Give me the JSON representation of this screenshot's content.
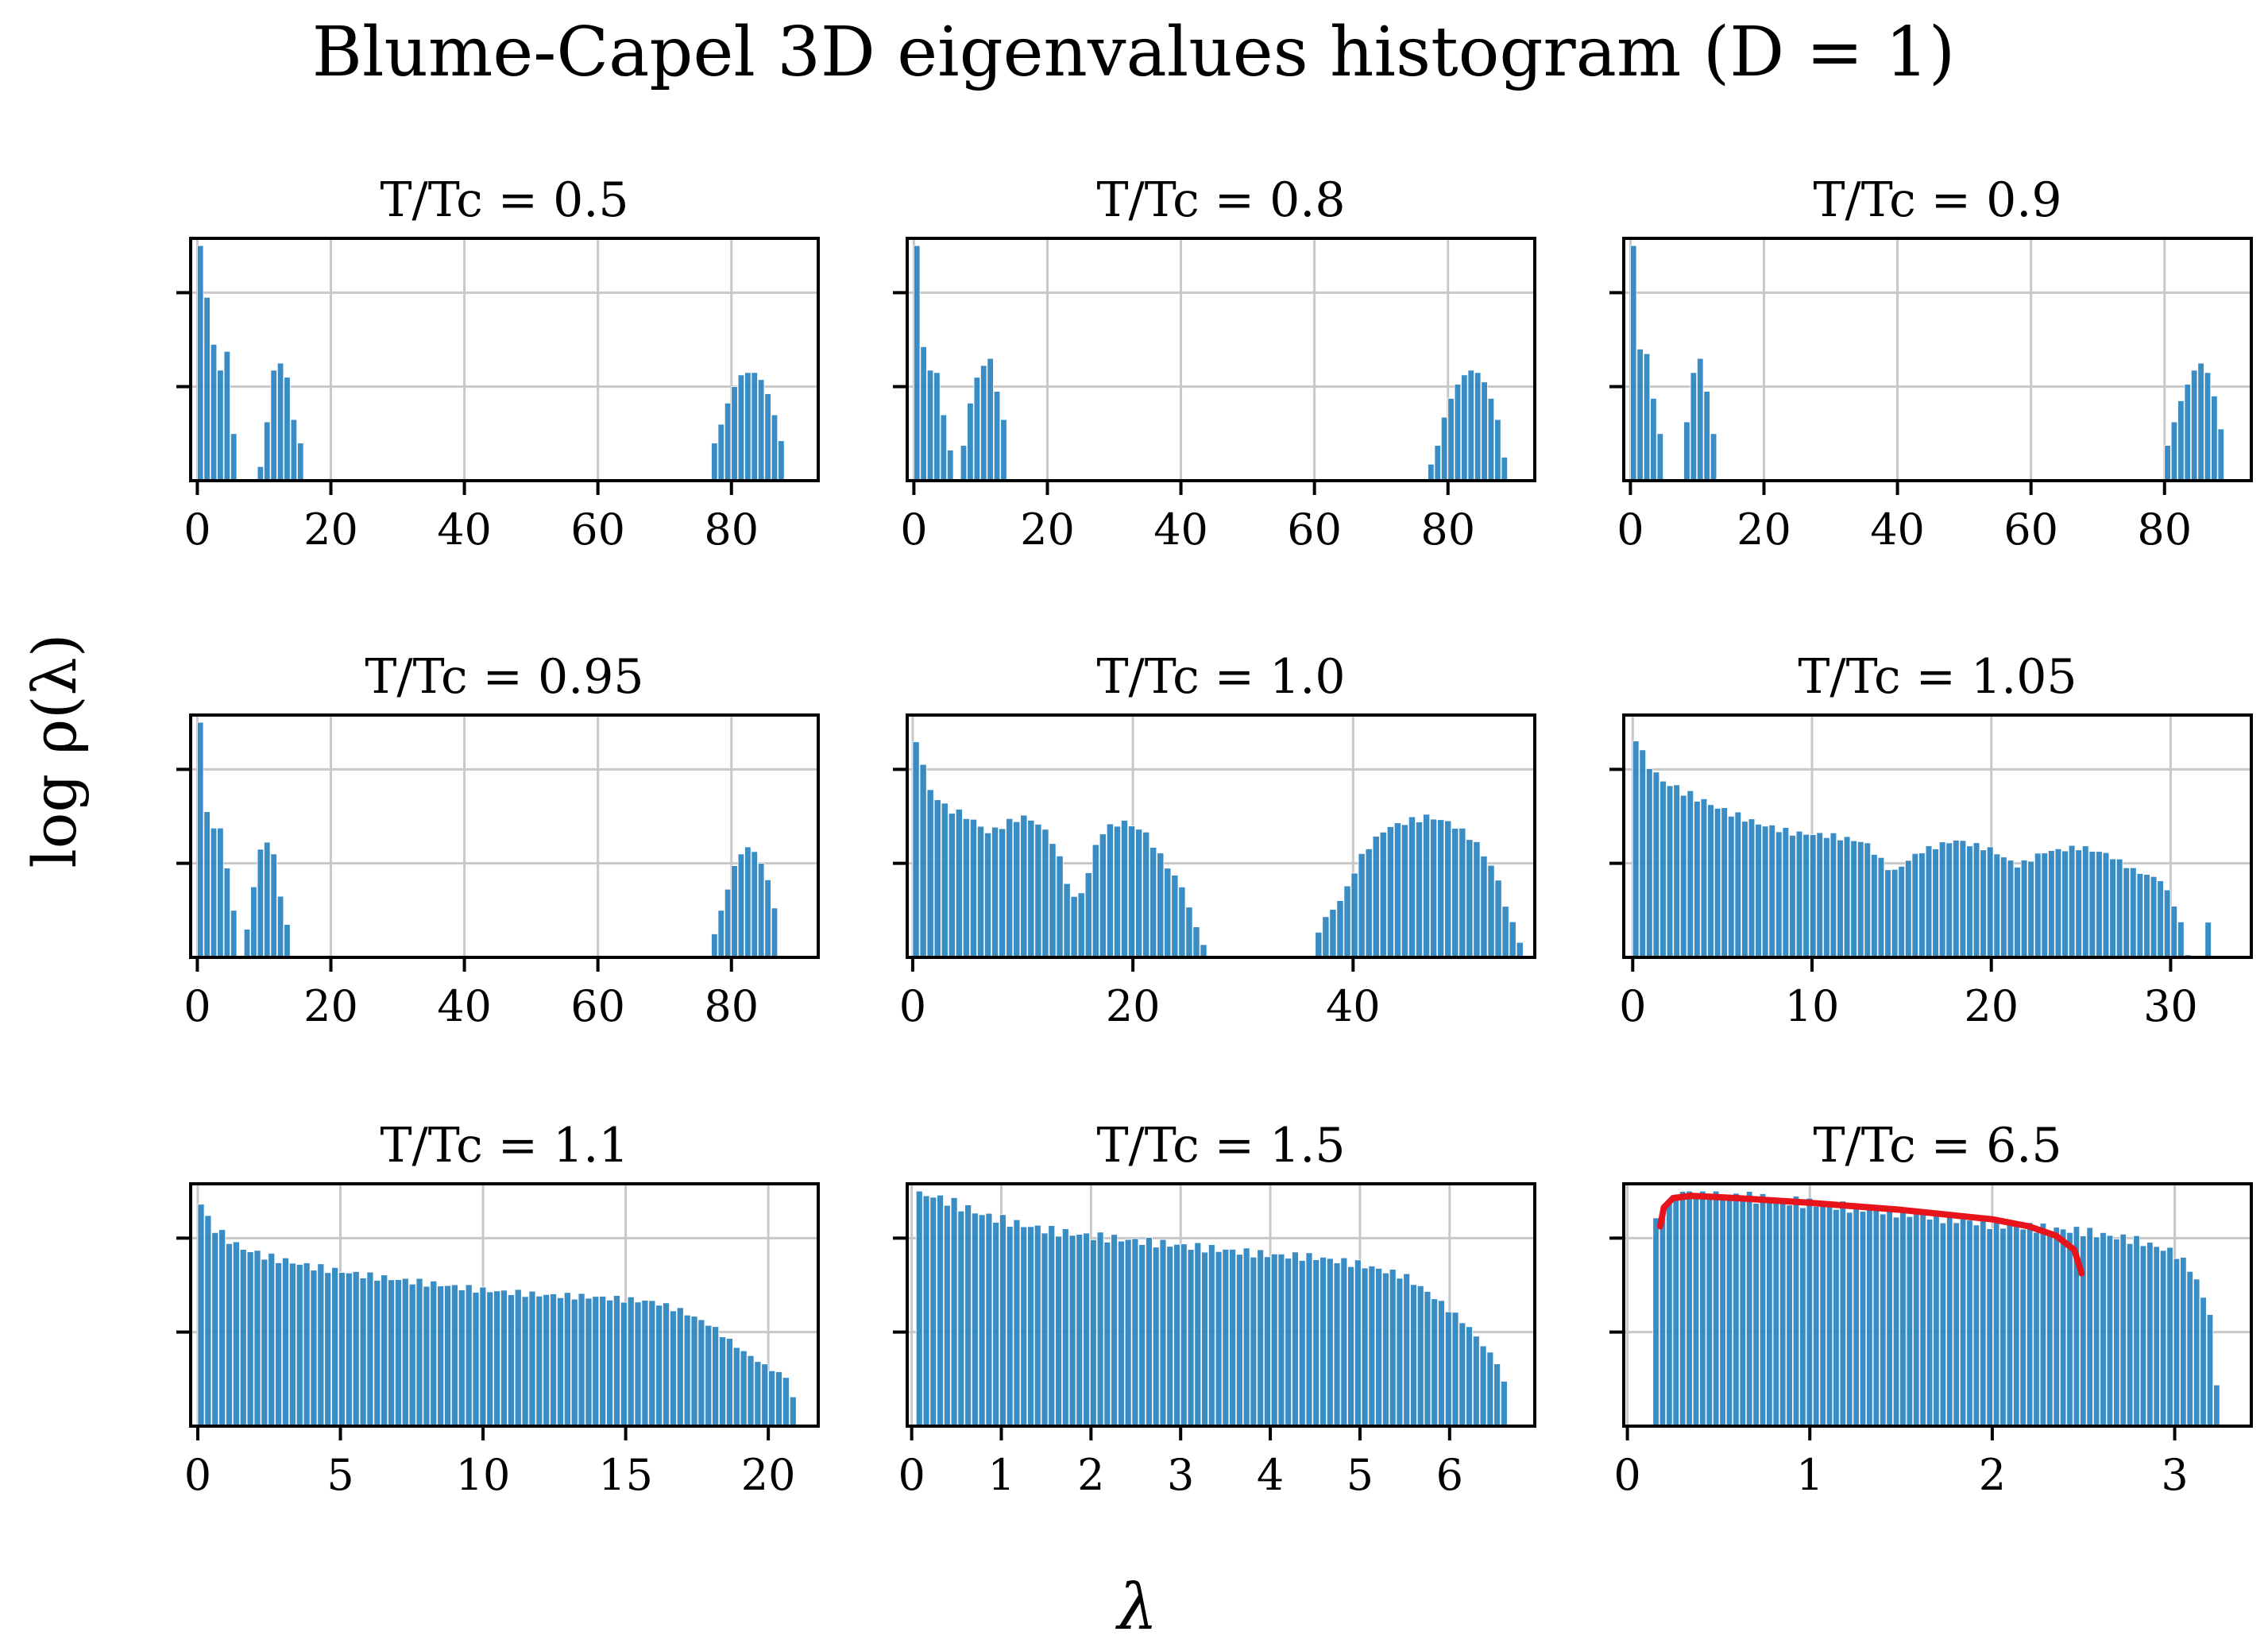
{
  "figure": {
    "title": "Blume-Capel 3D eigenvalues histogram (D = 1)",
    "xlabel": "λ",
    "ylabel": "log ρ(λ)",
    "bar_color": "#2e86c1",
    "fit_color": "#e8141b"
  },
  "chart_data": [
    {
      "type": "bar",
      "title": "T/Tc = 0.5",
      "xlim": [
        -1,
        93
      ],
      "ylim": [
        0,
        1
      ],
      "xticks": [
        0,
        20,
        40,
        60,
        80
      ],
      "yticks": [
        0.4,
        0.8
      ],
      "grid": true,
      "bins": [
        [
          0,
          1,
          1.0
        ],
        [
          1,
          2,
          0.78
        ],
        [
          2,
          3,
          0.58
        ],
        [
          3,
          4,
          0.47
        ],
        [
          4,
          5,
          0.55
        ],
        [
          5,
          6,
          0.2
        ],
        [
          9,
          10,
          0.06
        ],
        [
          10,
          11,
          0.25
        ],
        [
          11,
          12,
          0.47
        ],
        [
          12,
          13,
          0.5
        ],
        [
          13,
          14,
          0.44
        ],
        [
          14,
          15,
          0.26
        ],
        [
          15,
          16,
          0.16
        ],
        [
          77,
          78,
          0.16
        ],
        [
          78,
          79,
          0.24
        ],
        [
          79,
          80,
          0.33
        ],
        [
          80,
          81,
          0.4
        ],
        [
          81,
          82,
          0.45
        ],
        [
          82,
          83,
          0.46
        ],
        [
          83,
          84,
          0.46
        ],
        [
          84,
          85,
          0.43
        ],
        [
          85,
          86,
          0.37
        ],
        [
          86,
          87,
          0.28
        ],
        [
          87,
          88,
          0.17
        ]
      ]
    },
    {
      "type": "bar",
      "title": "T/Tc = 0.8",
      "xlim": [
        -1,
        93
      ],
      "ylim": [
        0,
        1
      ],
      "xticks": [
        0,
        20,
        40,
        60,
        80
      ],
      "yticks": [
        0.4,
        0.8
      ],
      "grid": true,
      "bins": [
        [
          0,
          1,
          1.0
        ],
        [
          1,
          2,
          0.57
        ],
        [
          2,
          3,
          0.47
        ],
        [
          3,
          4,
          0.46
        ],
        [
          4,
          5,
          0.28
        ],
        [
          5,
          6,
          0.13
        ],
        [
          7,
          8,
          0.15
        ],
        [
          8,
          9,
          0.33
        ],
        [
          9,
          10,
          0.44
        ],
        [
          10,
          11,
          0.49
        ],
        [
          11,
          12,
          0.52
        ],
        [
          12,
          13,
          0.38
        ],
        [
          13,
          14,
          0.26
        ],
        [
          77,
          78,
          0.07
        ],
        [
          78,
          79,
          0.15
        ],
        [
          79,
          80,
          0.27
        ],
        [
          80,
          81,
          0.35
        ],
        [
          81,
          82,
          0.41
        ],
        [
          82,
          83,
          0.45
        ],
        [
          83,
          84,
          0.47
        ],
        [
          84,
          85,
          0.46
        ],
        [
          85,
          86,
          0.42
        ],
        [
          86,
          87,
          0.35
        ],
        [
          87,
          88,
          0.26
        ],
        [
          88,
          89,
          0.1
        ]
      ]
    },
    {
      "type": "bar",
      "title": "T/Tc = 0.9",
      "xlim": [
        -1,
        93
      ],
      "ylim": [
        0,
        1
      ],
      "xticks": [
        0,
        20,
        40,
        60,
        80
      ],
      "yticks": [
        0.4,
        0.8
      ],
      "grid": true,
      "bins": [
        [
          0,
          1,
          1.0
        ],
        [
          1,
          2,
          0.56
        ],
        [
          2,
          3,
          0.54
        ],
        [
          3,
          4,
          0.35
        ],
        [
          4,
          5,
          0.2
        ],
        [
          8,
          9,
          0.25
        ],
        [
          9,
          10,
          0.46
        ],
        [
          10,
          11,
          0.52
        ],
        [
          11,
          12,
          0.38
        ],
        [
          12,
          13,
          0.2
        ],
        [
          80,
          81,
          0.15
        ],
        [
          81,
          82,
          0.25
        ],
        [
          82,
          83,
          0.34
        ],
        [
          83,
          84,
          0.41
        ],
        [
          84,
          85,
          0.47
        ],
        [
          85,
          86,
          0.5
        ],
        [
          86,
          87,
          0.46
        ],
        [
          87,
          88,
          0.36
        ],
        [
          88,
          89,
          0.22
        ]
      ]
    },
    {
      "type": "bar",
      "title": "T/Tc = 0.95",
      "xlim": [
        -1,
        93
      ],
      "ylim": [
        0,
        1
      ],
      "xticks": [
        0,
        20,
        40,
        60,
        80
      ],
      "yticks": [
        0.4,
        0.8
      ],
      "grid": true,
      "bins": [
        [
          0,
          1,
          1.0
        ],
        [
          1,
          2,
          0.62
        ],
        [
          2,
          3,
          0.55
        ],
        [
          3,
          4,
          0.55
        ],
        [
          4,
          5,
          0.38
        ],
        [
          5,
          6,
          0.2
        ],
        [
          7,
          8,
          0.12
        ],
        [
          8,
          9,
          0.3
        ],
        [
          9,
          10,
          0.46
        ],
        [
          10,
          11,
          0.49
        ],
        [
          11,
          12,
          0.44
        ],
        [
          12,
          13,
          0.26
        ],
        [
          13,
          14,
          0.14
        ],
        [
          77,
          78,
          0.1
        ],
        [
          78,
          79,
          0.2
        ],
        [
          79,
          80,
          0.29
        ],
        [
          80,
          81,
          0.39
        ],
        [
          81,
          82,
          0.44
        ],
        [
          82,
          83,
          0.47
        ],
        [
          83,
          84,
          0.45
        ],
        [
          84,
          85,
          0.4
        ],
        [
          85,
          86,
          0.33
        ],
        [
          86,
          87,
          0.21
        ]
      ]
    },
    {
      "type": "bar",
      "title": "T/Tc = 1.0",
      "xlim": [
        -0.5,
        56.5
      ],
      "ylim": [
        0,
        1
      ],
      "xticks": [
        0,
        20,
        40
      ],
      "yticks": [
        0.4,
        0.8
      ],
      "grid": true,
      "profile": [
        [
          0.0,
          1.0
        ],
        [
          0.6,
          0.88
        ],
        [
          1.5,
          0.72
        ],
        [
          3,
          0.64
        ],
        [
          5,
          0.6
        ],
        [
          7,
          0.53
        ],
        [
          8.5,
          0.57
        ],
        [
          10,
          0.6
        ],
        [
          11.5,
          0.57
        ],
        [
          13,
          0.48
        ],
        [
          14.5,
          0.25
        ],
        [
          15.5,
          0.28
        ],
        [
          17,
          0.53
        ],
        [
          19,
          0.58
        ],
        [
          21,
          0.54
        ],
        [
          23,
          0.4
        ],
        [
          24.5,
          0.3
        ],
        [
          26,
          0.1
        ],
        [
          27,
          0.0
        ],
        [
          36.5,
          0.0
        ],
        [
          37,
          0.14
        ],
        [
          39,
          0.25
        ],
        [
          41,
          0.45
        ],
        [
          43,
          0.55
        ],
        [
          45,
          0.58
        ],
        [
          47,
          0.6
        ],
        [
          49,
          0.57
        ],
        [
          51,
          0.5
        ],
        [
          53,
          0.36
        ],
        [
          54,
          0.2
        ],
        [
          55,
          0.1
        ],
        [
          55.5,
          0.0
        ]
      ]
    },
    {
      "type": "bar",
      "title": "T/Tc = 1.05",
      "xlim": [
        -0.5,
        34.5
      ],
      "ylim": [
        0,
        1
      ],
      "xticks": [
        0,
        10,
        20,
        30
      ],
      "yticks": [
        0.4,
        0.8
      ],
      "grid": true,
      "profile": [
        [
          0.0,
          1.0
        ],
        [
          0.4,
          0.88
        ],
        [
          1.5,
          0.76
        ],
        [
          3,
          0.7
        ],
        [
          5,
          0.63
        ],
        [
          7,
          0.57
        ],
        [
          9,
          0.53
        ],
        [
          11,
          0.52
        ],
        [
          13,
          0.49
        ],
        [
          14.5,
          0.36
        ],
        [
          16,
          0.45
        ],
        [
          18,
          0.5
        ],
        [
          20,
          0.46
        ],
        [
          21.5,
          0.39
        ],
        [
          23,
          0.45
        ],
        [
          25,
          0.47
        ],
        [
          26.5,
          0.44
        ],
        [
          28,
          0.37
        ],
        [
          29.5,
          0.33
        ],
        [
          30.5,
          0.18
        ],
        [
          31,
          0.0
        ],
        [
          32,
          0.0
        ],
        [
          32.1,
          0.16
        ],
        [
          32.3,
          0.0
        ]
      ]
    },
    {
      "type": "bar",
      "title": "T/Tc = 1.1",
      "xlim": [
        -0.25,
        21.75
      ],
      "ylim": [
        0,
        1
      ],
      "xticks": [
        0,
        5,
        10,
        15,
        20
      ],
      "yticks": [
        0.4,
        0.8
      ],
      "grid": true,
      "profile": [
        [
          0.0,
          1.0
        ],
        [
          0.25,
          0.9
        ],
        [
          0.7,
          0.83
        ],
        [
          1.5,
          0.76
        ],
        [
          2.5,
          0.72
        ],
        [
          4,
          0.68
        ],
        [
          6,
          0.64
        ],
        [
          8,
          0.61
        ],
        [
          10,
          0.58
        ],
        [
          12,
          0.56
        ],
        [
          14,
          0.55
        ],
        [
          16,
          0.53
        ],
        [
          17,
          0.49
        ],
        [
          18,
          0.43
        ],
        [
          19,
          0.33
        ],
        [
          20,
          0.25
        ],
        [
          20.8,
          0.2
        ],
        [
          21,
          0.0
        ]
      ]
    },
    {
      "type": "bar",
      "title": "T/Tc = 1.5",
      "xlim": [
        -0.05,
        6.95
      ],
      "ylim": [
        0,
        1
      ],
      "xticks": [
        0,
        1,
        2,
        3,
        4,
        5,
        6
      ],
      "yticks": [
        0.4,
        0.8
      ],
      "grid": true,
      "profile": [
        [
          0.05,
          1.0
        ],
        [
          0.4,
          0.96
        ],
        [
          0.8,
          0.9
        ],
        [
          1.2,
          0.86
        ],
        [
          1.6,
          0.83
        ],
        [
          2.0,
          0.81
        ],
        [
          2.5,
          0.79
        ],
        [
          3.0,
          0.77
        ],
        [
          3.5,
          0.75
        ],
        [
          4.0,
          0.73
        ],
        [
          4.5,
          0.72
        ],
        [
          5.0,
          0.69
        ],
        [
          5.5,
          0.64
        ],
        [
          5.8,
          0.56
        ],
        [
          6.2,
          0.43
        ],
        [
          6.6,
          0.24
        ],
        [
          6.65,
          0.0
        ]
      ]
    },
    {
      "type": "bar",
      "title": "T/Tc = 6.5",
      "xlim": [
        -0.02,
        3.42
      ],
      "ylim": [
        0,
        1
      ],
      "xticks": [
        0,
        1,
        2,
        3
      ],
      "yticks": [
        0.4,
        0.8
      ],
      "grid": true,
      "profile": [
        [
          0.14,
          0.84
        ],
        [
          0.2,
          0.92
        ],
        [
          0.3,
          1.0
        ],
        [
          0.6,
          0.98
        ],
        [
          1.0,
          0.95
        ],
        [
          1.5,
          0.91
        ],
        [
          2.0,
          0.86
        ],
        [
          2.5,
          0.83
        ],
        [
          2.8,
          0.79
        ],
        [
          3.0,
          0.74
        ],
        [
          3.1,
          0.66
        ],
        [
          3.2,
          0.47
        ],
        [
          3.25,
          0.0
        ]
      ],
      "fit": [
        [
          0.18,
          0.85
        ],
        [
          0.2,
          0.93
        ],
        [
          0.25,
          0.97
        ],
        [
          0.35,
          0.98
        ],
        [
          0.6,
          0.97
        ],
        [
          1.0,
          0.95
        ],
        [
          1.5,
          0.92
        ],
        [
          2.0,
          0.88
        ],
        [
          2.2,
          0.85
        ],
        [
          2.35,
          0.81
        ],
        [
          2.45,
          0.75
        ],
        [
          2.49,
          0.65
        ]
      ]
    }
  ]
}
